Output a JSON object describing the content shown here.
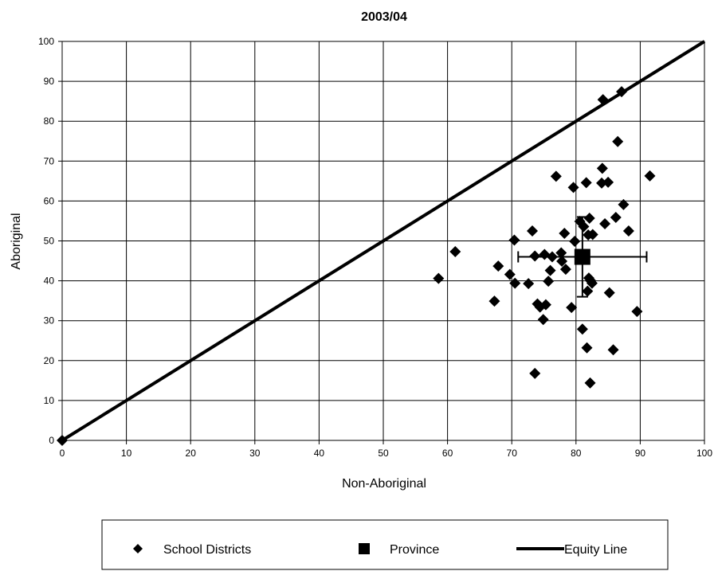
{
  "chart_data": {
    "type": "scatter",
    "title": "2003/04",
    "xlabel": "Non-Aboriginal",
    "ylabel": "Aboriginal",
    "xlim": [
      0,
      100
    ],
    "ylim": [
      0,
      100
    ],
    "xticks": [
      "0",
      "10",
      "20",
      "30",
      "40",
      "50",
      "60",
      "70",
      "80",
      "90",
      "100"
    ],
    "yticks": [
      "0",
      "10",
      "20",
      "30",
      "40",
      "50",
      "60",
      "70",
      "80",
      "90",
      "100"
    ],
    "grid": true,
    "legend_position": "bottom",
    "series": [
      {
        "name": "School Districts",
        "marker": "diamond",
        "color": "#000000",
        "points": [
          [
            0,
            0
          ],
          [
            58.6,
            40.6
          ],
          [
            61.2,
            47.3
          ],
          [
            67.3,
            34.9
          ],
          [
            67.9,
            43.7
          ],
          [
            69.7,
            41.6
          ],
          [
            70.4,
            50.2
          ],
          [
            70.5,
            39.4
          ],
          [
            72.6,
            39.3
          ],
          [
            73.2,
            52.5
          ],
          [
            73.6,
            46.2
          ],
          [
            73.6,
            16.8
          ],
          [
            74.0,
            34.2
          ],
          [
            74.4,
            33.4
          ],
          [
            74.9,
            30.3
          ],
          [
            75.1,
            46.6
          ],
          [
            75.3,
            34.0
          ],
          [
            75.7,
            39.9
          ],
          [
            76.0,
            42.6
          ],
          [
            76.3,
            46.0
          ],
          [
            76.9,
            66.2
          ],
          [
            77.7,
            47.0
          ],
          [
            77.8,
            44.9
          ],
          [
            78.2,
            51.9
          ],
          [
            78.4,
            42.9
          ],
          [
            79.3,
            33.3
          ],
          [
            79.6,
            63.4
          ],
          [
            79.8,
            49.9
          ],
          [
            80.6,
            54.9
          ],
          [
            81.0,
            27.9
          ],
          [
            81.2,
            53.6
          ],
          [
            81.6,
            64.6
          ],
          [
            81.7,
            23.2
          ],
          [
            81.8,
            37.4
          ],
          [
            81.9,
            51.5
          ],
          [
            82.0,
            40.7
          ],
          [
            82.1,
            55.7
          ],
          [
            82.2,
            14.4
          ],
          [
            82.3,
            40.0
          ],
          [
            82.5,
            39.4
          ],
          [
            82.6,
            51.6
          ],
          [
            84.0,
            64.5
          ],
          [
            84.1,
            68.2
          ],
          [
            84.2,
            85.4
          ],
          [
            84.5,
            54.3
          ],
          [
            85.0,
            64.7
          ],
          [
            85.2,
            37.0
          ],
          [
            85.8,
            22.7
          ],
          [
            86.2,
            55.9
          ],
          [
            86.5,
            74.9
          ],
          [
            87.1,
            87.4
          ],
          [
            87.4,
            59.1
          ],
          [
            88.2,
            52.5
          ],
          [
            89.5,
            32.3
          ],
          [
            91.5,
            66.3
          ]
        ]
      },
      {
        "name": "Province",
        "marker": "square",
        "color": "#000000",
        "points": [
          [
            81.0,
            46.0
          ]
        ],
        "error_x": [
          71.0,
          91.0
        ],
        "error_y": [
          36.0,
          56.0
        ]
      },
      {
        "name": "Equity Line",
        "marker": "line",
        "color": "#000000",
        "points": [
          [
            0,
            0
          ],
          [
            100,
            100
          ]
        ]
      }
    ]
  }
}
